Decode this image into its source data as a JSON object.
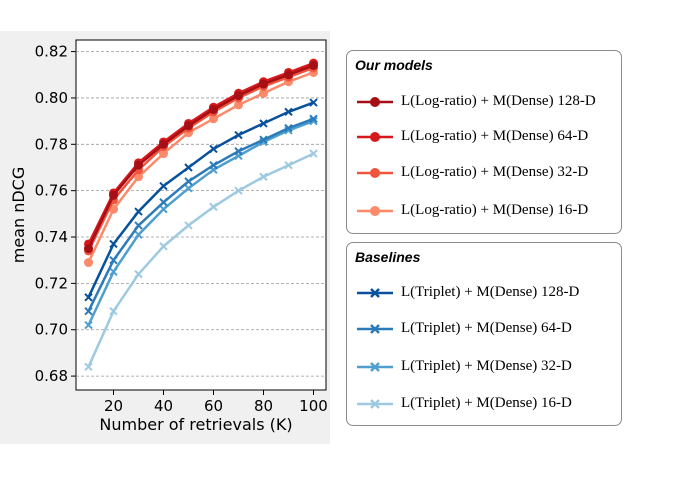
{
  "chart_data": {
    "type": "line",
    "xlabel": "Number of retrievals (K)",
    "ylabel": "mean nDCG",
    "xlim": [
      5,
      105
    ],
    "ylim": [
      0.674,
      0.825
    ],
    "xticks": [
      20,
      40,
      60,
      80,
      100
    ],
    "yticks": [
      0.68,
      0.7,
      0.72,
      0.74,
      0.76,
      0.78,
      0.8,
      0.82
    ],
    "ytick_labels": [
      "0.68",
      "0.70",
      "0.72",
      "0.74",
      "0.76",
      "0.78",
      "0.80",
      "0.82"
    ],
    "grid": "horizontal dashed",
    "x": [
      10,
      20,
      30,
      40,
      50,
      60,
      70,
      80,
      90,
      100
    ],
    "series": [
      {
        "name": "L(Log-ratio) + M(Dense)  128-D",
        "color": "#a50f15",
        "marker": "circle",
        "group": "ours",
        "values": [
          0.735,
          0.758,
          0.771,
          0.78,
          0.788,
          0.795,
          0.801,
          0.806,
          0.81,
          0.814
        ]
      },
      {
        "name": "L(Log-ratio) + M(Dense)  64-D",
        "color": "#d7191c",
        "marker": "circle",
        "group": "ours",
        "values": [
          0.737,
          0.759,
          0.772,
          0.781,
          0.789,
          0.796,
          0.802,
          0.807,
          0.811,
          0.815
        ]
      },
      {
        "name": "L(Log-ratio) + M(Dense)  32-D",
        "color": "#f0543c",
        "marker": "circle",
        "group": "ours",
        "values": [
          0.734,
          0.756,
          0.769,
          0.779,
          0.787,
          0.794,
          0.8,
          0.805,
          0.809,
          0.813
        ]
      },
      {
        "name": "L(Log-ratio) + M(Dense)  16-D",
        "color": "#fb8a6a",
        "marker": "circle",
        "group": "ours",
        "values": [
          0.729,
          0.752,
          0.766,
          0.776,
          0.785,
          0.791,
          0.797,
          0.802,
          0.807,
          0.811
        ]
      },
      {
        "name": "L(Triplet) + M(Dense)  128-D",
        "color": "#08519c",
        "marker": "x",
        "group": "baseline",
        "values": [
          0.714,
          0.737,
          0.751,
          0.762,
          0.77,
          0.778,
          0.784,
          0.789,
          0.794,
          0.798
        ]
      },
      {
        "name": "L(Triplet) + M(Dense)  64-D",
        "color": "#2b7bba",
        "marker": "x",
        "group": "baseline",
        "values": [
          0.708,
          0.73,
          0.745,
          0.755,
          0.764,
          0.771,
          0.777,
          0.782,
          0.787,
          0.791
        ]
      },
      {
        "name": "L(Triplet) + M(Dense)  32-D",
        "color": "#4e9fd0",
        "marker": "x",
        "group": "baseline",
        "values": [
          0.702,
          0.725,
          0.741,
          0.752,
          0.761,
          0.769,
          0.775,
          0.781,
          0.786,
          0.79
        ]
      },
      {
        "name": "L(Triplet) + M(Dense)  16-D",
        "color": "#9ecae1",
        "marker": "x",
        "group": "baseline",
        "values": [
          0.684,
          0.708,
          0.724,
          0.736,
          0.745,
          0.753,
          0.76,
          0.766,
          0.771,
          0.776
        ]
      }
    ]
  },
  "legend": {
    "ours_title": "Our models",
    "baselines_title": "Baselines"
  }
}
